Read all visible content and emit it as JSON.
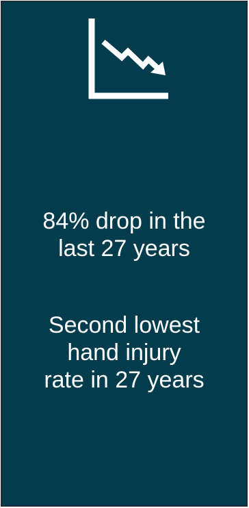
{
  "card": {
    "background": "#033c4d",
    "border_color": "#1c2a33",
    "icon": "trend-down-chart-icon",
    "stat_line": "84% drop in the\nlast 27 years",
    "rank_line": "Second lowest\nhand injury\nrate in 27 years",
    "text_color": "#ffffff"
  }
}
